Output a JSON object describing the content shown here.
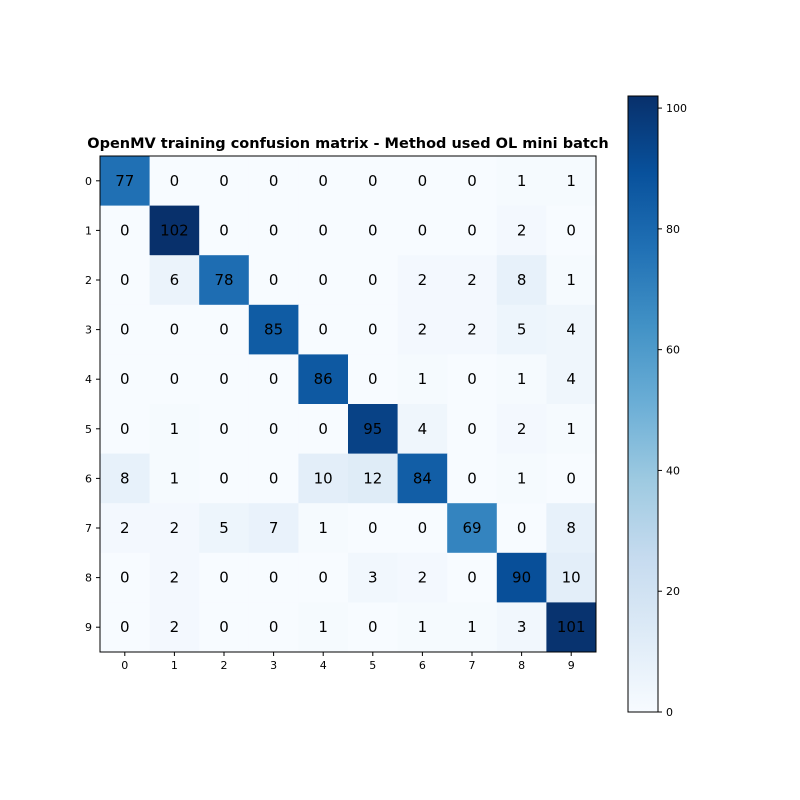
{
  "chart_data": {
    "type": "heatmap",
    "title": "OpenMV training confusion matrix - Method used OL mini batch",
    "xlabel": "",
    "ylabel": "",
    "x_categories": [
      "0",
      "1",
      "2",
      "3",
      "4",
      "5",
      "6",
      "7",
      "8",
      "9"
    ],
    "y_categories": [
      "0",
      "1",
      "2",
      "3",
      "4",
      "5",
      "6",
      "7",
      "8",
      "9"
    ],
    "matrix": [
      [
        77,
        0,
        0,
        0,
        0,
        0,
        0,
        0,
        1,
        1
      ],
      [
        0,
        102,
        0,
        0,
        0,
        0,
        0,
        0,
        2,
        0
      ],
      [
        0,
        6,
        78,
        0,
        0,
        0,
        2,
        2,
        8,
        1
      ],
      [
        0,
        0,
        0,
        85,
        0,
        0,
        2,
        2,
        5,
        4
      ],
      [
        0,
        0,
        0,
        0,
        86,
        0,
        1,
        0,
        1,
        4
      ],
      [
        0,
        1,
        0,
        0,
        0,
        95,
        4,
        0,
        2,
        1
      ],
      [
        8,
        1,
        0,
        0,
        10,
        12,
        84,
        0,
        1,
        0
      ],
      [
        2,
        2,
        5,
        7,
        1,
        0,
        0,
        69,
        0,
        8
      ],
      [
        0,
        2,
        0,
        0,
        0,
        3,
        2,
        0,
        90,
        10
      ],
      [
        0,
        2,
        0,
        0,
        1,
        0,
        1,
        1,
        3,
        101
      ]
    ],
    "colormap": "Blues",
    "value_range": [
      0,
      102
    ],
    "colorbar_ticks": [
      "0",
      "20",
      "40",
      "60",
      "80",
      "100"
    ],
    "colorbar_tick_values": [
      0,
      20,
      40,
      60,
      80,
      100
    ],
    "grid": false
  }
}
